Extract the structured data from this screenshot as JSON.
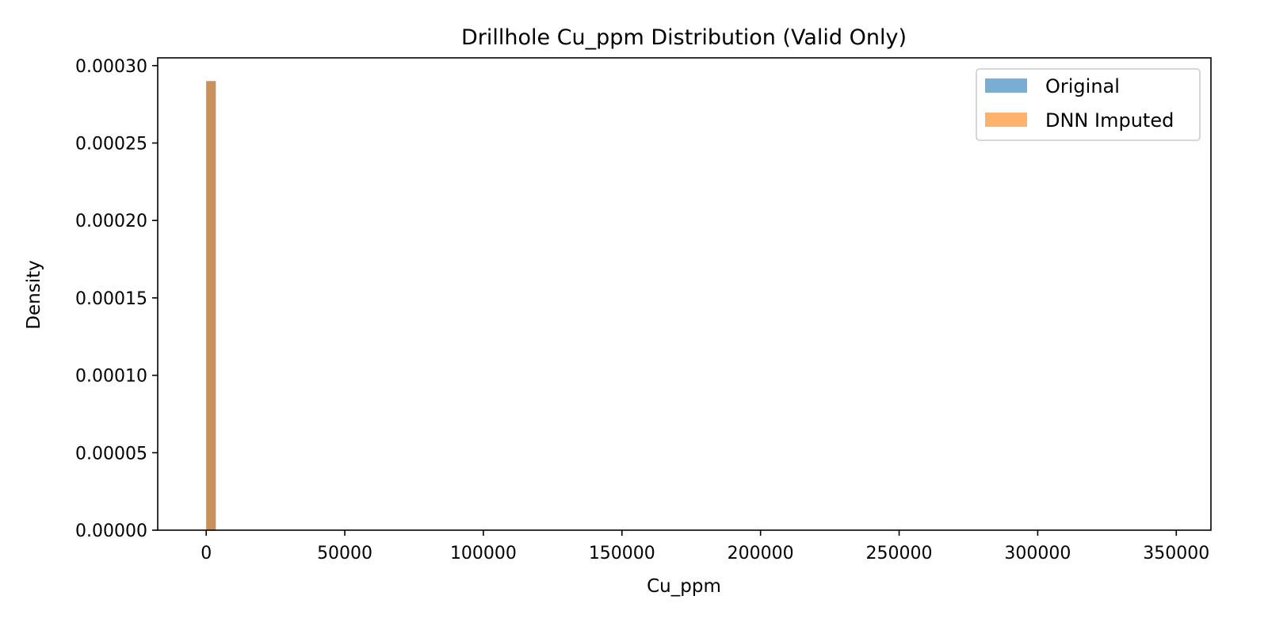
{
  "chart_data": {
    "type": "histogram",
    "title": "Drillhole Cu_ppm Distribution (Valid Only)",
    "xlabel": "Cu_ppm",
    "ylabel": "Density",
    "xlim": [
      -17500,
      362500
    ],
    "ylim": [
      0,
      0.000305
    ],
    "x_ticks": [
      0,
      50000,
      100000,
      150000,
      200000,
      250000,
      300000,
      350000
    ],
    "x_tick_labels": [
      "0",
      "50000",
      "100000",
      "150000",
      "200000",
      "250000",
      "300000",
      "350000"
    ],
    "y_ticks": [
      0,
      5e-05,
      0.0001,
      0.00015,
      0.0002,
      0.00025,
      0.0003
    ],
    "y_tick_labels": [
      "0.00000",
      "0.00005",
      "0.00010",
      "0.00015",
      "0.00020",
      "0.00025",
      "0.00030"
    ],
    "grid": false,
    "legend_position": "top-right",
    "series": [
      {
        "name": "Original",
        "color": "#1f77b4",
        "opacity": 0.6,
        "bins": [
          {
            "x0": 0,
            "x1": 3450,
            "density": 0.00029
          }
        ]
      },
      {
        "name": "DNN Imputed",
        "color": "#ff7f0e",
        "opacity": 0.6,
        "bins": [
          {
            "x0": 0,
            "x1": 3450,
            "density": 0.00029
          }
        ]
      }
    ]
  }
}
